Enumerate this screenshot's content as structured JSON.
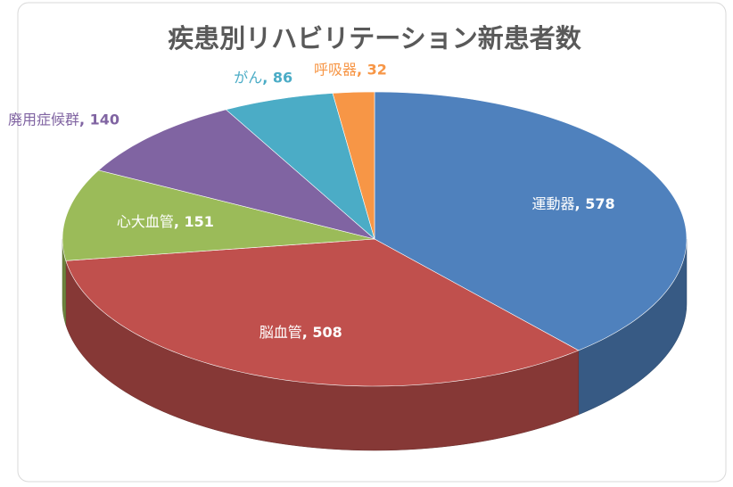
{
  "chart_data": {
    "type": "pie3d",
    "title": "疾患別リハビリテーション新患者数",
    "categories": [
      "運動器",
      "脳血管",
      "心大血管",
      "廃用症候群",
      "がん",
      "呼吸器"
    ],
    "values": [
      578,
      508,
      151,
      140,
      86,
      32
    ],
    "label_separator": ", ",
    "colors": [
      "#4f81bd",
      "#c0504d",
      "#9bbb59",
      "#8064a2",
      "#4bacc6",
      "#f79646"
    ]
  }
}
